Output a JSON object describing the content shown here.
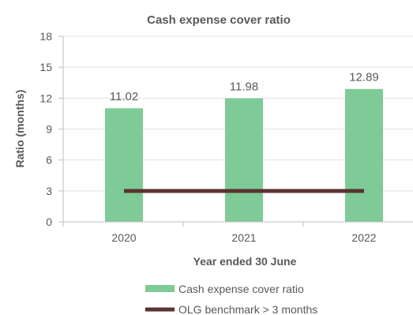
{
  "chart_data": {
    "type": "bar",
    "title": "Cash expense cover ratio",
    "xlabel": "Year ended 30 June",
    "ylabel": "Ratio (months)",
    "categories": [
      "2020",
      "2021",
      "2022"
    ],
    "ylim": [
      0,
      18
    ],
    "yticks": [
      0,
      3,
      6,
      9,
      12,
      15,
      18
    ],
    "grid": true,
    "legend_position": "bottom",
    "series": [
      {
        "name": "Cash expense cover ratio",
        "type": "bar",
        "color": "#7ecb97",
        "values": [
          11.02,
          11.98,
          12.89
        ],
        "data_labels": [
          "11.02",
          "11.98",
          "12.89"
        ]
      },
      {
        "name": "OLG benchmark > 3 months",
        "type": "line",
        "color": "#5b3332",
        "values": [
          3,
          3,
          3
        ]
      }
    ]
  }
}
